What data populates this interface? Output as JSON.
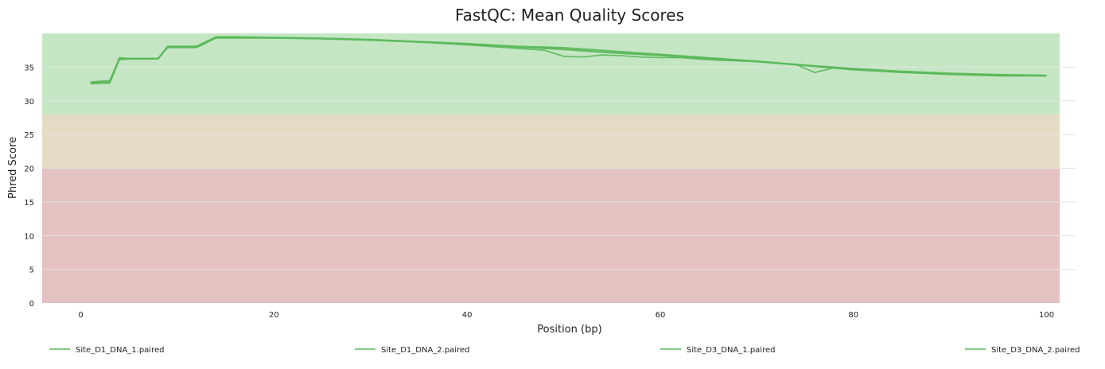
{
  "chart_data": {
    "type": "line",
    "title": "FastQC: Mean Quality Scores",
    "xlabel": "Position (bp)",
    "ylabel": "Phred Score",
    "xlim": [
      -4,
      103
    ],
    "ylim": [
      0,
      40
    ],
    "x_ticks": [
      0,
      20,
      40,
      60,
      80,
      100
    ],
    "y_ticks": [
      0,
      5,
      10,
      15,
      20,
      25,
      30,
      35
    ],
    "grid": true,
    "legend_position": "bottom",
    "bands": [
      {
        "from": 28,
        "to": 40,
        "color": "#c4e6c3"
      },
      {
        "from": 20,
        "to": 28,
        "color": "#e5dbc5"
      },
      {
        "from": 0,
        "to": 20,
        "color": "#e4c2c2"
      }
    ],
    "series": [
      {
        "name": "Site_D1_DNA_1.paired",
        "color": "#5cb85c",
        "points": [
          [
            1,
            32.8
          ],
          [
            2,
            32.9
          ],
          [
            3,
            33.0
          ],
          [
            4,
            36.4
          ],
          [
            5,
            36.3
          ],
          [
            6,
            36.3
          ],
          [
            7,
            36.3
          ],
          [
            8,
            36.3
          ],
          [
            9,
            38.1
          ],
          [
            10,
            38.1
          ],
          [
            11,
            38.1
          ],
          [
            12,
            38.1
          ],
          [
            14,
            39.5
          ],
          [
            16,
            39.5
          ],
          [
            20,
            39.4
          ],
          [
            25,
            39.3
          ],
          [
            30,
            39.1
          ],
          [
            35,
            38.8
          ],
          [
            40,
            38.5
          ],
          [
            45,
            38.1
          ],
          [
            50,
            37.9
          ],
          [
            55,
            37.4
          ],
          [
            60,
            36.9
          ],
          [
            65,
            36.4
          ],
          [
            70,
            35.9
          ],
          [
            75,
            35.3
          ],
          [
            80,
            34.8
          ],
          [
            85,
            34.4
          ],
          [
            90,
            34.1
          ],
          [
            95,
            33.9
          ],
          [
            100,
            33.8
          ]
        ]
      },
      {
        "name": "Site_D1_DNA_2.paired",
        "color": "#5cb85c",
        "points": [
          [
            1,
            32.5
          ],
          [
            2,
            32.6
          ],
          [
            3,
            32.6
          ],
          [
            4,
            36.1
          ],
          [
            5,
            36.2
          ],
          [
            6,
            36.2
          ],
          [
            7,
            36.2
          ],
          [
            8,
            36.2
          ],
          [
            9,
            37.9
          ],
          [
            10,
            37.9
          ],
          [
            11,
            37.9
          ],
          [
            12,
            37.9
          ],
          [
            14,
            39.3
          ],
          [
            16,
            39.3
          ],
          [
            20,
            39.3
          ],
          [
            25,
            39.2
          ],
          [
            30,
            39.0
          ],
          [
            35,
            38.7
          ],
          [
            40,
            38.3
          ],
          [
            44,
            37.9
          ],
          [
            48,
            37.5
          ],
          [
            50,
            36.6
          ],
          [
            52,
            36.5
          ],
          [
            54,
            36.8
          ],
          [
            56,
            36.7
          ],
          [
            58,
            36.5
          ],
          [
            60,
            36.4
          ],
          [
            62,
            36.4
          ],
          [
            65,
            36.1
          ],
          [
            70,
            35.8
          ],
          [
            74,
            35.4
          ],
          [
            76,
            34.2
          ],
          [
            78,
            34.9
          ],
          [
            80,
            34.7
          ],
          [
            85,
            34.3
          ],
          [
            90,
            34.0
          ],
          [
            95,
            33.8
          ],
          [
            100,
            33.7
          ]
        ]
      },
      {
        "name": "Site_D3_DNA_1.paired",
        "color": "#5cb85c",
        "points": [
          [
            1,
            32.7
          ],
          [
            2,
            32.8
          ],
          [
            3,
            32.8
          ],
          [
            4,
            36.3
          ],
          [
            5,
            36.3
          ],
          [
            6,
            36.3
          ],
          [
            7,
            36.3
          ],
          [
            8,
            36.3
          ],
          [
            9,
            38.0
          ],
          [
            10,
            38.0
          ],
          [
            11,
            38.0
          ],
          [
            12,
            38.0
          ],
          [
            14,
            39.4
          ],
          [
            16,
            39.4
          ],
          [
            20,
            39.4
          ],
          [
            25,
            39.2
          ],
          [
            30,
            39.0
          ],
          [
            35,
            38.7
          ],
          [
            40,
            38.4
          ],
          [
            45,
            38.0
          ],
          [
            50,
            37.7
          ],
          [
            55,
            37.2
          ],
          [
            60,
            36.8
          ],
          [
            65,
            36.3
          ],
          [
            70,
            35.8
          ],
          [
            75,
            35.3
          ],
          [
            80,
            34.7
          ],
          [
            85,
            34.3
          ],
          [
            90,
            34.0
          ],
          [
            95,
            33.8
          ],
          [
            100,
            33.7
          ]
        ]
      },
      {
        "name": "Site_D3_DNA_2.paired",
        "color": "#5cb85c",
        "points": [
          [
            1,
            32.6
          ],
          [
            2,
            32.7
          ],
          [
            3,
            32.7
          ],
          [
            4,
            36.2
          ],
          [
            5,
            36.2
          ],
          [
            6,
            36.2
          ],
          [
            7,
            36.2
          ],
          [
            8,
            36.2
          ],
          [
            9,
            38.0
          ],
          [
            10,
            38.0
          ],
          [
            11,
            38.0
          ],
          [
            12,
            38.0
          ],
          [
            14,
            39.4
          ],
          [
            16,
            39.4
          ],
          [
            20,
            39.3
          ],
          [
            25,
            39.2
          ],
          [
            30,
            39.0
          ],
          [
            35,
            38.7
          ],
          [
            40,
            38.4
          ],
          [
            45,
            38.0
          ],
          [
            50,
            37.6
          ],
          [
            55,
            37.1
          ],
          [
            60,
            36.7
          ],
          [
            65,
            36.2
          ],
          [
            70,
            35.8
          ],
          [
            75,
            35.2
          ],
          [
            80,
            34.6
          ],
          [
            85,
            34.2
          ],
          [
            90,
            33.9
          ],
          [
            95,
            33.7
          ],
          [
            100,
            33.7
          ]
        ]
      }
    ]
  }
}
